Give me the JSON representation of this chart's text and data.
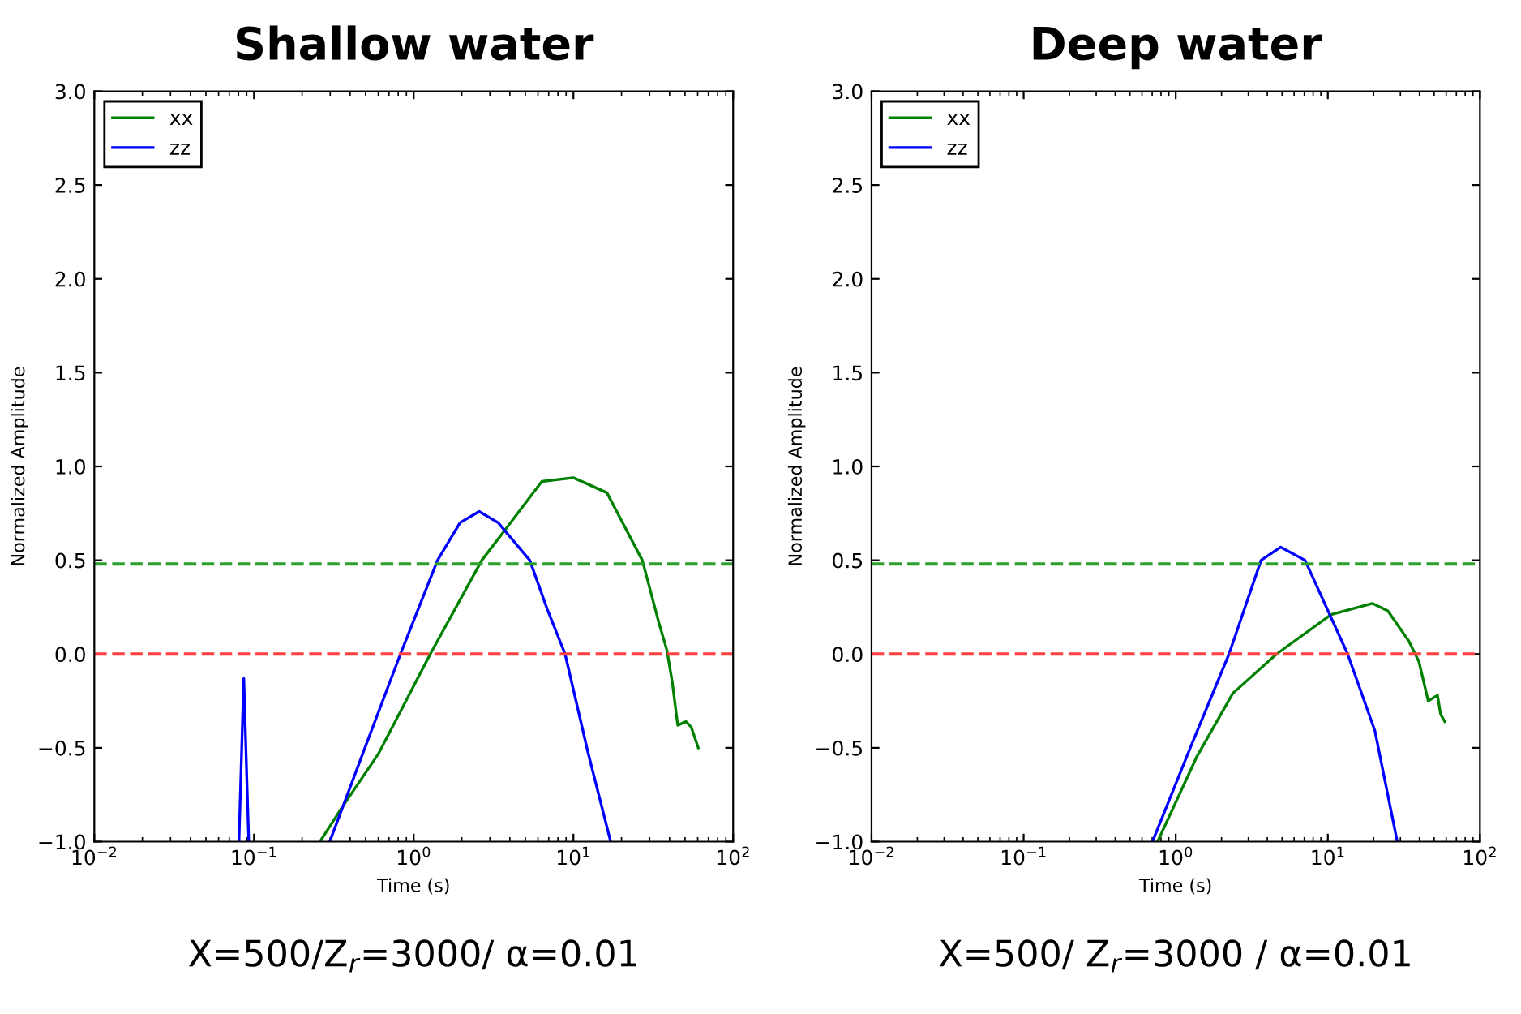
{
  "chart_data": [
    {
      "type": "line",
      "title": "Shallow water",
      "xlabel": "Time (s)",
      "ylabel": "Normalized Amplitude",
      "annotations": [
        "X=500/Z$_{r}$=3000/ α=0.01"
      ],
      "log": "x",
      "legend": "top left",
      "grid": false,
      "xlim": [
        0.01,
        100
      ],
      "xticks": [
        {
          "value": 0.01,
          "label": "10$^{−2}$"
        },
        {
          "value": 0.1,
          "label": "10$^{−1}$"
        },
        {
          "value": 1,
          "label": "10$^{0}$"
        },
        {
          "value": 10,
          "label": "10$^{1}$"
        },
        {
          "value": 100,
          "label": "10$^{2}$"
        }
      ],
      "ylim": [
        -1.0,
        3.0
      ],
      "yticks": [
        {
          "value": -1.0,
          "label": "−1.0"
        },
        {
          "value": -0.5,
          "label": "−0.5"
        },
        {
          "value": 0.0,
          "label": "0.0"
        },
        {
          "value": 0.5,
          "label": "0.5"
        },
        {
          "value": 1.0,
          "label": "1.0"
        },
        {
          "value": 1.5,
          "label": "1.5"
        },
        {
          "value": 2.0,
          "label": "2.0"
        },
        {
          "value": 2.5,
          "label": "2.5"
        },
        {
          "value": 3.0,
          "label": "3.0"
        }
      ],
      "ref_lines": [
        {
          "axis": "y",
          "value": 0.48,
          "color": "#2ca02c",
          "line_style": "dashed"
        },
        {
          "axis": "y",
          "value": 0.0,
          "color": "#ff4040",
          "line_style": "dashed"
        }
      ],
      "series": [
        {
          "name": "xx",
          "color": "#008000",
          "x": [
            0.259,
            0.348,
            0.603,
            1.27,
            2.67,
            3.8,
            6.34,
            10,
            16.2,
            27,
            34.2,
            38.5,
            41.6,
            45,
            50.6,
            54.7,
            60.5
          ],
          "values": [
            -1.0,
            -0.83,
            -0.53,
            0.0,
            0.5,
            0.67,
            0.92,
            0.94,
            0.86,
            0.5,
            0.17,
            0.02,
            -0.15,
            -0.38,
            -0.36,
            -0.39,
            -0.5
          ]
        },
        {
          "name": "zz",
          "color": "#0000ff",
          "x": [
            0.0805,
            0.0863,
            0.0927,
            null,
            0.298,
            0.495,
            0.826,
            1.41,
            1.95,
            2.57,
            3.38,
            5.33,
            6.85,
            8.87,
            12.3,
            17.1
          ],
          "values": [
            -1.0,
            -0.13,
            -1.0,
            null,
            -1.0,
            -0.5,
            0.0,
            0.5,
            0.7,
            0.76,
            0.7,
            0.5,
            0.24,
            0.0,
            -0.52,
            -1.0
          ]
        }
      ]
    },
    {
      "type": "line",
      "title": "Deep water",
      "xlabel": "Time (s)",
      "ylabel": "Normalized Amplitude",
      "annotations": [
        "X=500/ Z$_{r}$=3000 / α=0.01"
      ],
      "log": "x",
      "legend": "top left",
      "grid": false,
      "xlim": [
        0.01,
        100
      ],
      "xticks": [
        {
          "value": 0.01,
          "label": "10$^{−2}$"
        },
        {
          "value": 0.1,
          "label": "10$^{−1}$"
        },
        {
          "value": 1,
          "label": "10$^{0}$"
        },
        {
          "value": 10,
          "label": "10$^{1}$"
        },
        {
          "value": 100,
          "label": "10$^{2}$"
        }
      ],
      "ylim": [
        -1.0,
        3.0
      ],
      "yticks": [
        {
          "value": -1.0,
          "label": "−1.0"
        },
        {
          "value": -0.5,
          "label": "−0.5"
        },
        {
          "value": 0.0,
          "label": "0.0"
        },
        {
          "value": 0.5,
          "label": "0.5"
        },
        {
          "value": 1.0,
          "label": "1.0"
        },
        {
          "value": 1.5,
          "label": "1.5"
        },
        {
          "value": 2.0,
          "label": "2.0"
        },
        {
          "value": 2.5,
          "label": "2.5"
        },
        {
          "value": 3.0,
          "label": "3.0"
        }
      ],
      "ref_lines": [
        {
          "axis": "y",
          "value": 0.48,
          "color": "#2ca02c",
          "line_style": "dashed"
        },
        {
          "axis": "y",
          "value": 0.0,
          "color": "#ff4040",
          "line_style": "dashed"
        }
      ],
      "series": [
        {
          "name": "xx",
          "color": "#008000",
          "x": [
            0.76,
            1.37,
            2.37,
            4.6,
            10.5,
            19.6,
            24.8,
            34,
            39.7,
            45.7,
            50.2,
            52.6,
            55.1,
            58.7
          ],
          "values": [
            -1.0,
            -0.55,
            -0.21,
            0.0,
            0.21,
            0.27,
            0.23,
            0.07,
            -0.04,
            -0.25,
            -0.23,
            -0.22,
            -0.32,
            -0.36
          ]
        },
        {
          "name": "zz",
          "color": "#0000ff",
          "x": [
            0.703,
            1.26,
            2.24,
            3.64,
            4.9,
            7.08,
            13.5,
            20.4,
            28.6
          ],
          "values": [
            -1.0,
            -0.49,
            0.0,
            0.5,
            0.57,
            0.5,
            0.0,
            -0.41,
            -1.0
          ]
        }
      ]
    }
  ]
}
